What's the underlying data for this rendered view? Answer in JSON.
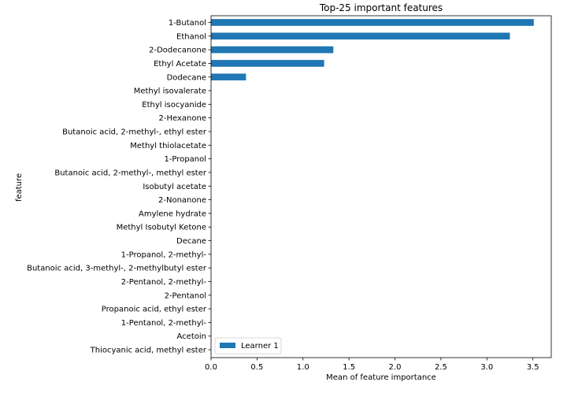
{
  "chart_data": {
    "type": "bar",
    "orientation": "horizontal",
    "title": "Top-25 important features",
    "xlabel": "Mean of feature importance",
    "ylabel": "feature",
    "xlim": [
      0,
      3.7
    ],
    "xticks": [
      "0.0",
      "0.5",
      "1.0",
      "1.5",
      "2.0",
      "2.5",
      "3.0",
      "3.5"
    ],
    "grid": false,
    "legend_position": "bottom-left",
    "categories": [
      "1-Butanol",
      "Ethanol",
      "2-Dodecanone",
      "Ethyl Acetate",
      "Dodecane",
      "Methyl isovalerate",
      "Ethyl isocyanide",
      "2-Hexanone",
      "Butanoic acid, 2-methyl-, ethyl ester",
      "Methyl thiolacetate",
      "1-Propanol",
      "Butanoic acid, 2-methyl-, methyl ester",
      "Isobutyl acetate",
      "2-Nonanone ",
      "Amylene hydrate",
      "Methyl Isobutyl Ketone",
      "Decane",
      "1-Propanol, 2-methyl-",
      "Butanoic acid, 3-methyl-, 2-methylbutyl ester",
      "2-Pentanol, 2-methyl-",
      "2-Pentanol",
      "Propanoic acid, ethyl ester",
      "1-Pentanol, 2-methyl-",
      "Acetoin",
      "Thiocyanic acid, methyl ester"
    ],
    "series": [
      {
        "name": "Learner 1",
        "color": "#1f77b4",
        "values": [
          3.51,
          3.25,
          1.33,
          1.23,
          0.38,
          0,
          0,
          0,
          0,
          0,
          0,
          0,
          0,
          0,
          0,
          0,
          0,
          0,
          0,
          0,
          0,
          0,
          0,
          0,
          0
        ]
      }
    ]
  }
}
